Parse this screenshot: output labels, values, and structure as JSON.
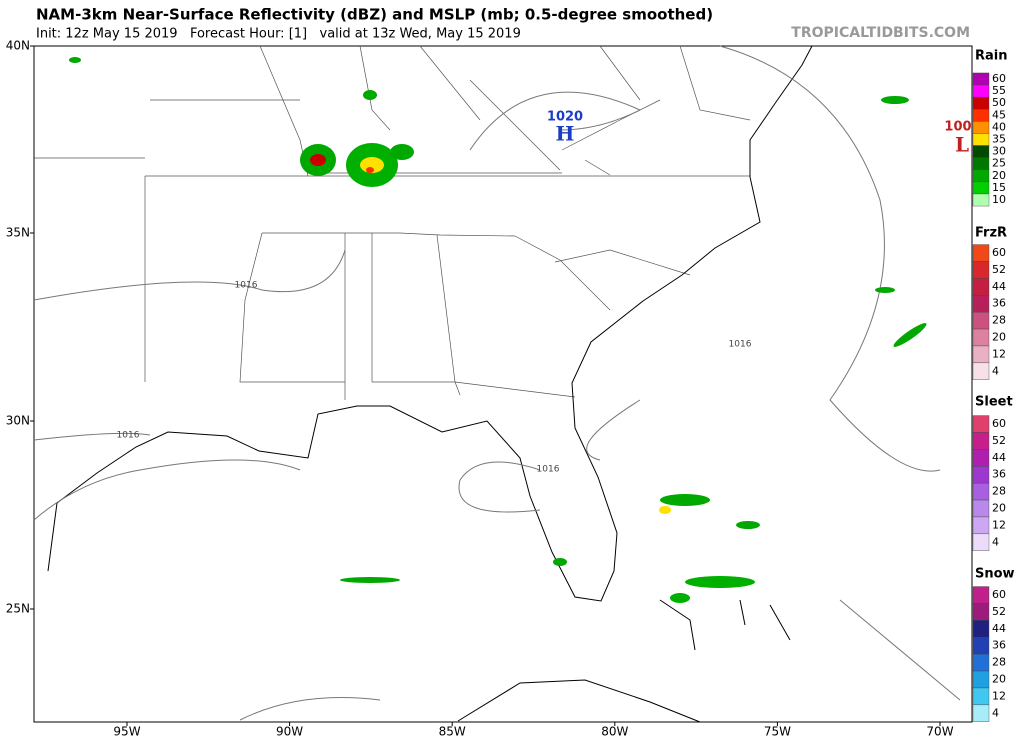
{
  "header": {
    "title": "NAM-3km Near-Surface Reflectivity (dBZ) and MSLP (mb; 0.5-degree smoothed)",
    "subtitle": "Init: 12z May 15 2019   Forecast Hour: [1]   valid at 13z Wed, May 15 2019",
    "brand": "TROPICALTIDBITS.COM"
  },
  "map": {
    "lat_labels": [
      "40N",
      "35N",
      "30N",
      "25N"
    ],
    "lon_labels": [
      "95W",
      "90W",
      "85W",
      "80W",
      "75W",
      "70W"
    ],
    "annotations": {
      "high_pressure": "1020",
      "high_marker": "H",
      "low_pressure": "100",
      "low_marker": "L",
      "isobar_labels": [
        "1016",
        "1016",
        "1016",
        "1016"
      ]
    }
  },
  "legend": [
    {
      "title": "Rain",
      "levels": [
        60,
        55,
        50,
        45,
        40,
        35,
        30,
        25,
        20,
        15,
        10
      ],
      "colors": [
        "#b000b0",
        "#ff00ff",
        "#c80000",
        "#ff3000",
        "#ff9000",
        "#ffe000",
        "#004a00",
        "#007800",
        "#00a800",
        "#00d000",
        "#b0ffb0"
      ]
    },
    {
      "title": "FrzR",
      "levels": [
        60,
        52,
        44,
        36,
        28,
        20,
        12,
        4
      ],
      "colors": [
        "#f04818",
        "#d8282c",
        "#c41e40",
        "#b8205c",
        "#cc5080",
        "#dc82a0",
        "#eab0c4",
        "#f8e0e8"
      ]
    },
    {
      "title": "Sleet",
      "levels": [
        60,
        52,
        44,
        36,
        28,
        20,
        12,
        4
      ],
      "colors": [
        "#e0406c",
        "#c81e8c",
        "#b01eb0",
        "#9c38d0",
        "#a860e0",
        "#b888ea",
        "#cca8f2",
        "#ecdcfa"
      ]
    },
    {
      "title": "Snow",
      "levels": [
        60,
        52,
        44,
        36,
        28,
        20,
        12,
        4
      ],
      "colors": [
        "#c0208c",
        "#9c1c7c",
        "#202080",
        "#2040b4",
        "#2070d8",
        "#20a0e0",
        "#40c8f0",
        "#a8ecfa"
      ]
    }
  ]
}
